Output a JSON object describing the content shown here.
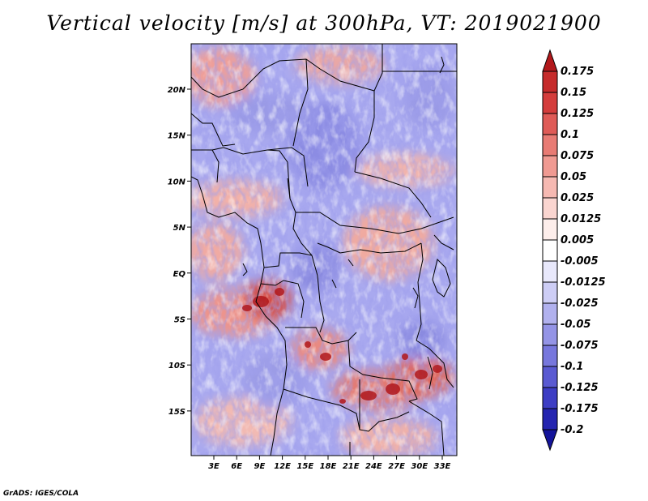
{
  "title": "Vertical velocity [m/s] at 300hPa, VT: 2019021900",
  "footer": "GrADS: IGES/COLA",
  "map": {
    "lat_labels": [
      "20N",
      "15N",
      "10N",
      "5N",
      "EQ",
      "5S",
      "10S",
      "15S"
    ],
    "lon_labels": [
      "3E",
      "6E",
      "9E",
      "12E",
      "15E",
      "18E",
      "21E",
      "24E",
      "27E",
      "30E",
      "33E"
    ]
  },
  "colorbar": {
    "labels": [
      "0.175",
      "0.15",
      "0.125",
      "0.1",
      "0.075",
      "0.05",
      "0.025",
      "0.0125",
      "0.005",
      "-0.005",
      "-0.0125",
      "-0.025",
      "-0.05",
      "-0.075",
      "-0.1",
      "-0.125",
      "-0.175",
      "-0.2"
    ],
    "colors": [
      "#b2181b",
      "#c62b2b",
      "#d43d3c",
      "#df5b57",
      "#e87b74",
      "#f09a92",
      "#f6b9b2",
      "#fad5d0",
      "#fdeeeb",
      "#ffffff",
      "#e8e8fb",
      "#cdcdf5",
      "#b1b1ee",
      "#9494e6",
      "#7777dd",
      "#5a5ad2",
      "#3d3dc4",
      "#2525b0",
      "#14149a"
    ]
  }
}
